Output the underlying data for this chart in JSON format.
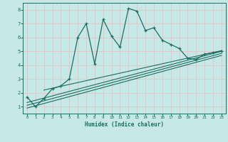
{
  "xlabel": "Humidex (Indice chaleur)",
  "ylabel": "",
  "xlim": [
    -0.5,
    23.5
  ],
  "ylim": [
    0.5,
    8.5
  ],
  "xticks": [
    0,
    1,
    2,
    3,
    4,
    5,
    6,
    7,
    8,
    9,
    10,
    11,
    12,
    13,
    14,
    15,
    16,
    17,
    18,
    19,
    20,
    21,
    22,
    23
  ],
  "yticks": [
    1,
    2,
    3,
    4,
    5,
    6,
    7,
    8
  ],
  "bg_color": "#c6e8e6",
  "grid_color": "#e0c8c8",
  "line_color": "#1a6e62",
  "zigzag_x": [
    0,
    1,
    2,
    3,
    4,
    5,
    6,
    7,
    8,
    9,
    10,
    11,
    12,
    13,
    14,
    15,
    16,
    17,
    18,
    19,
    20,
    21,
    22,
    23
  ],
  "zigzag_y": [
    1.7,
    1.0,
    1.6,
    2.3,
    2.5,
    3.0,
    6.0,
    7.0,
    4.1,
    7.3,
    6.1,
    5.3,
    8.1,
    7.9,
    6.5,
    6.7,
    5.8,
    5.5,
    5.2,
    4.5,
    4.4,
    4.8,
    4.9,
    5.0
  ],
  "ref_lines": [
    {
      "x0": 0,
      "y0": 1.3,
      "x1": 23,
      "y1": 5.0
    },
    {
      "x0": 0,
      "y0": 1.1,
      "x1": 23,
      "y1": 4.85
    },
    {
      "x0": 0,
      "y0": 0.9,
      "x1": 23,
      "y1": 4.7
    },
    {
      "x0": 2,
      "y0": 2.2,
      "x1": 23,
      "y1": 5.05
    }
  ]
}
